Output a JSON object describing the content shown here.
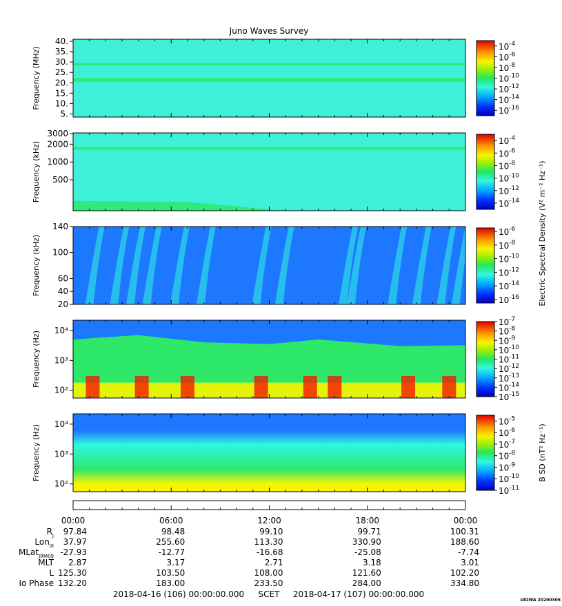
{
  "title": "Juno Waves Survey",
  "footer_stamp": "UIOWA 20200306",
  "colors": {
    "bg": "#3ff0d8",
    "cyan": "#30f8e0",
    "blue": "#1e78ff",
    "green": "#2ee86a",
    "yellow": "#f7f400",
    "orange": "#ff9a00",
    "red": "#f21a00"
  },
  "chart_data": [
    {
      "type": "heatmap",
      "panel": "1",
      "ylabel": "Frequency (MHz)",
      "yscale": "linear",
      "ylim": [
        3.5,
        41
      ],
      "yticks": [
        5,
        10,
        15,
        20,
        25,
        30,
        35,
        40
      ],
      "ytick_labels": [
        "5.",
        "10.",
        "15.",
        "20.",
        "25.",
        "30.",
        "35.",
        "40."
      ],
      "colorbar": {
        "exponents": [
          -4,
          -6,
          -8,
          -10,
          -12,
          -14,
          -16
        ],
        "min_exp": -17,
        "max_exp": -3
      },
      "features": [
        {
          "type": "band",
          "y": 21.5,
          "half_width": 0.9,
          "color": "green"
        },
        {
          "type": "band",
          "y": 29,
          "half_width": 0.6,
          "color": "green"
        }
      ]
    },
    {
      "type": "heatmap",
      "panel": "2",
      "ylabel": "Frequency (kHz)",
      "yscale": "log",
      "ylim": [
        150,
        3100
      ],
      "yticks": [
        500,
        1000,
        2000,
        3000
      ],
      "ytick_labels": [
        "500",
        "1000",
        "2000",
        "3000"
      ],
      "colorbar": {
        "exponents": [
          -4,
          -6,
          -8,
          -10,
          -12,
          -14
        ],
        "min_exp": -15,
        "max_exp": -3
      },
      "features": [
        {
          "type": "band",
          "y": 1700,
          "half_width": 0.06,
          "color": "green"
        },
        {
          "type": "lowband",
          "hours": [
            0,
            7,
            13
          ],
          "top_khz": [
            220,
            210,
            150
          ],
          "color": "green"
        }
      ]
    },
    {
      "type": "heatmap",
      "panel": "3",
      "ylabel": "Frequency (kHz)",
      "yscale": "linear",
      "ylim": [
        20,
        140
      ],
      "yticks": [
        20,
        40,
        60,
        100,
        140
      ],
      "ytick_labels": [
        "20",
        "40",
        "60",
        "100",
        "140"
      ],
      "colorbar_label": "Electric Spectral Density (V² m⁻² Hz⁻¹)",
      "colorbar": {
        "exponents": [
          -6,
          -8,
          -10,
          -12,
          -14,
          -16
        ],
        "min_exp": -16.5,
        "max_exp": -5.5
      },
      "features": [
        {
          "type": "bursts",
          "hours": [
            1.0,
            2.5,
            3.5,
            4.5,
            6.2,
            7.8,
            11.2,
            12.6,
            16.5,
            17.0,
            19.5,
            21.0,
            22.5,
            23.4
          ],
          "color": "cyan"
        }
      ]
    },
    {
      "type": "heatmap",
      "panel": "4",
      "ylabel": "Frequency (Hz)",
      "yscale": "log",
      "ylim": [
        55,
        22000
      ],
      "yticks": [
        100,
        1000,
        10000
      ],
      "ytick_labels": [
        "10²",
        "10³",
        "10⁴"
      ],
      "colorbar": {
        "exponents": [
          -7,
          -8,
          -9,
          -10,
          -11,
          -12,
          -13,
          -14,
          -15
        ],
        "min_exp": -15,
        "max_exp": -7
      },
      "features": [
        {
          "type": "boundary",
          "hours": [
            0,
            4,
            8,
            12,
            15,
            20,
            24
          ],
          "blue_above_hz": [
            5000,
            7000,
            4000,
            3500,
            5000,
            3000,
            3200
          ]
        },
        {
          "type": "hotspots",
          "hours": [
            1.2,
            4.2,
            7.0,
            11.5,
            14.5,
            16.0,
            20.5,
            23.0
          ],
          "color": "red"
        }
      ]
    },
    {
      "type": "heatmap",
      "panel": "5",
      "ylabel": "Frequency (Hz)",
      "yscale": "log",
      "ylim": [
        55,
        22000
      ],
      "yticks": [
        100,
        1000,
        10000
      ],
      "ytick_labels": [
        "10²",
        "10³",
        "10⁴"
      ],
      "colorbar_label": "B SD (nT² Hz⁻¹)",
      "colorbar": {
        "exponents": [
          -5,
          -6,
          -7,
          -8,
          -9,
          -10,
          -11
        ],
        "min_exp": -11,
        "max_exp": -4.5
      },
      "features": [
        {
          "type": "gradient",
          "stops_hz": [
            22000,
            6000,
            2000,
            300,
            100,
            55
          ],
          "stops_color": [
            "blue",
            "blue",
            "cyan",
            "green",
            "yellow",
            "yellow"
          ]
        }
      ]
    }
  ],
  "time_axis": {
    "ticks_hours": [
      0,
      6,
      12,
      18,
      24
    ],
    "tick_labels": [
      "00:00",
      "06:00",
      "12:00",
      "18:00",
      "00:00"
    ],
    "minor_step_hours": 1
  },
  "ephemeris": [
    {
      "label": "R",
      "sub": "J",
      "values": [
        "97.84",
        "98.48",
        "99.10",
        "99.71",
        "100.31"
      ]
    },
    {
      "label": "Lon",
      "sub": "III",
      "values": [
        "37.97",
        "255.60",
        "113.30",
        "330.90",
        "188.60"
      ]
    },
    {
      "label": "MLat",
      "sub": "JRM09",
      "values": [
        "-27.93",
        "-12.77",
        "-16.68",
        "-25.08",
        "-7.74"
      ]
    },
    {
      "label": "MLT",
      "sub": "",
      "values": [
        "2.87",
        "3.17",
        "2.71",
        "3.18",
        "3.01"
      ]
    },
    {
      "label": "L",
      "sub": "",
      "values": [
        "125.30",
        "103.50",
        "108.00",
        "121.60",
        "102.20"
      ]
    },
    {
      "label": "Io Phase",
      "sub": "",
      "values": [
        "132.20",
        "183.00",
        "233.50",
        "284.00",
        "334.80"
      ]
    }
  ],
  "time_range": {
    "start": "2018-04-16 (106) 00:00:00.000",
    "frame": "SCET",
    "end": "2018-04-17 (107) 00:00:00.000"
  }
}
